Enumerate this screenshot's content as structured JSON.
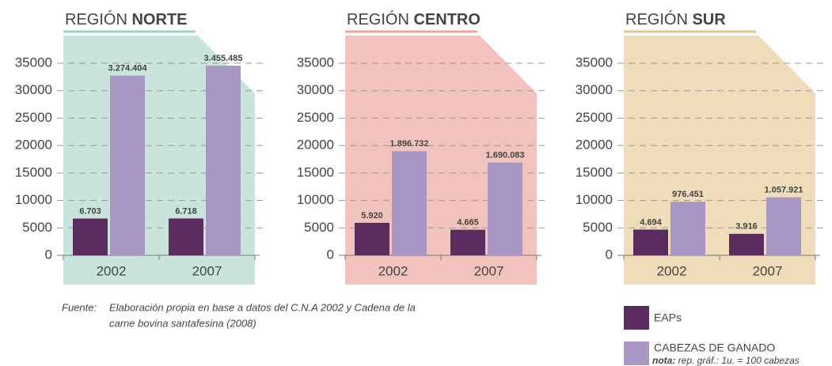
{
  "chart_data": [
    {
      "type": "bar",
      "title": [
        "REGIÓN",
        "NORTE"
      ],
      "categories": [
        "2002",
        "2007"
      ],
      "series": [
        {
          "name": "EAPs",
          "color": "#5a2d5e",
          "values": [
            6703,
            6718
          ],
          "value_labels": [
            "6.703",
            "6.718"
          ]
        },
        {
          "name": "CABEZAS DE GANADO",
          "color": "#a997c3",
          "values": [
            32744.04,
            34554.85
          ],
          "value_labels": [
            "3.274.404",
            "3.455.485"
          ]
        }
      ],
      "ylim": [
        0,
        35000
      ],
      "yticks": [
        0,
        5000,
        10000,
        15000,
        20000,
        25000,
        30000,
        35000
      ],
      "grid": true,
      "background": "#c8e4dc",
      "accent": "#9dd2c7"
    },
    {
      "type": "bar",
      "title": [
        "REGIÓN",
        "CENTRO"
      ],
      "categories": [
        "2002",
        "2007"
      ],
      "series": [
        {
          "name": "EAPs",
          "color": "#5a2d5e",
          "values": [
            5920,
            4665
          ],
          "value_labels": [
            "5.920",
            "4.665"
          ]
        },
        {
          "name": "CABEZAS DE GANADO",
          "color": "#a997c3",
          "values": [
            18967.32,
            16900.83
          ],
          "value_labels": [
            "1.896.732",
            "1.690.083"
          ]
        }
      ],
      "ylim": [
        0,
        35000
      ],
      "yticks": [
        0,
        5000,
        10000,
        15000,
        20000,
        25000,
        30000,
        35000
      ],
      "grid": true,
      "background": "#f2c3bd",
      "accent": "#e8a79a"
    },
    {
      "type": "bar",
      "title": [
        "REGIÓN",
        "SUR"
      ],
      "categories": [
        "2002",
        "2007"
      ],
      "series": [
        {
          "name": "EAPs",
          "color": "#5a2d5e",
          "values": [
            4694,
            3916
          ],
          "value_labels": [
            "4.694",
            "3.916"
          ]
        },
        {
          "name": "CABEZAS DE GANADO",
          "color": "#a997c3",
          "values": [
            9764.51,
            10579.21
          ],
          "value_labels": [
            "976.451",
            "1.057.921"
          ]
        }
      ],
      "ylim": [
        0,
        35000
      ],
      "yticks": [
        0,
        5000,
        10000,
        15000,
        20000,
        25000,
        30000,
        35000
      ],
      "grid": true,
      "background": "#efdcb9",
      "accent": "#e5c48f"
    }
  ],
  "source": {
    "label": "Fuente:",
    "text": [
      "Elaboración propia en base a datos del C.N.A 2002 y Cadena de la",
      "carne bovina santafesina (2008)"
    ]
  },
  "note": {
    "label": "nota:",
    "text": "rep. gráf.: 1u. = 100 cabezas"
  }
}
